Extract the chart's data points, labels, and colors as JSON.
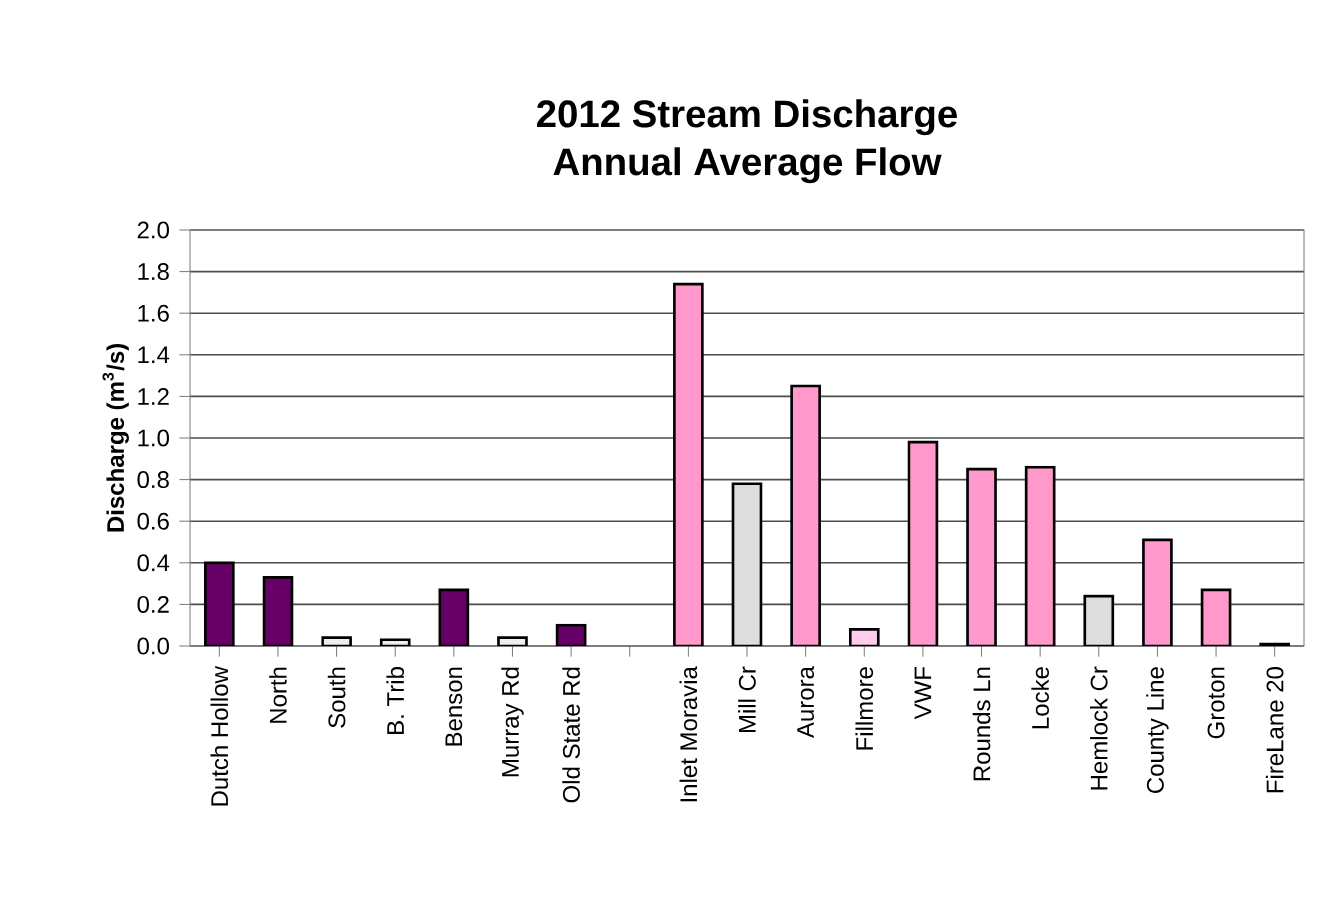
{
  "chart_data": {
    "type": "bar",
    "title": "2012 Stream Discharge\nAnnual Average Flow",
    "ylabel": "Discharge (m$^{3}$/s)",
    "categories": [
      "Dutch Hollow",
      "North",
      "South",
      "B. Trib",
      "Benson",
      "Murray Rd",
      "Old State Rd",
      null,
      "Inlet Moravia",
      "Mill Cr",
      "Aurora",
      "Fillmore",
      "VWF",
      "Rounds Ln",
      "Locke",
      "Hemlock Cr",
      "County Line",
      "Groton",
      "FireLane 20"
    ],
    "values": [
      0.4,
      0.33,
      0.04,
      0.03,
      0.27,
      0.04,
      0.1,
      null,
      1.74,
      0.78,
      1.25,
      0.08,
      0.98,
      0.85,
      0.86,
      0.24,
      0.51,
      0.27,
      0.01
    ],
    "colors": [
      "#660066",
      "#660066",
      "#eeeeee",
      "#eeeeee",
      "#660066",
      "#eeeeee",
      "#660066",
      "#ffffff",
      "#ff99cc",
      "#dddddd",
      "#ff99cc",
      "#ffccee",
      "#ff99cc",
      "#ff99cc",
      "#ff99cc",
      "#dddddd",
      "#ff99cc",
      "#ff99cc",
      "#ff99cc"
    ],
    "ylim": [
      0,
      2.0
    ],
    "yticks": [
      {
        "value": 0,
        "label": "0.0"
      },
      {
        "value": 0.2,
        "label": "0.2"
      },
      {
        "value": 0.4,
        "label": "0.4"
      },
      {
        "value": 0.6,
        "label": "0.6"
      },
      {
        "value": 0.8,
        "label": "0.8"
      },
      {
        "value": 1.0,
        "label": "1.0"
      },
      {
        "value": 1.2,
        "label": "1.2"
      },
      {
        "value": 1.4,
        "label": "1.4"
      },
      {
        "value": 1.6,
        "label": "1.6"
      },
      {
        "value": 1.8,
        "label": "1.8"
      },
      {
        "value": 2.0,
        "label": "2.0"
      }
    ],
    "grid": "y"
  }
}
